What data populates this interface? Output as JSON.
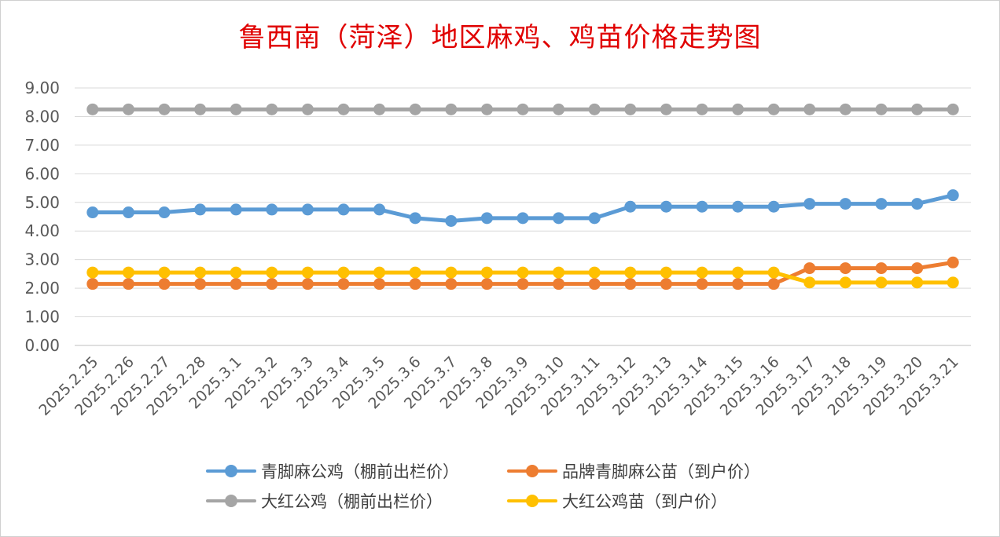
{
  "chart_data": {
    "type": "line",
    "title": "鲁西南（菏泽）地区麻鸡、鸡苗价格走势图",
    "xlabel": "",
    "ylabel": "",
    "ylim": [
      0,
      9
    ],
    "ytick_labels": [
      "0.00",
      "1.00",
      "2.00",
      "3.00",
      "4.00",
      "5.00",
      "6.00",
      "7.00",
      "8.00",
      "9.00"
    ],
    "grid": "horizontal",
    "legend_position": "bottom",
    "categories": [
      "2025.2.25",
      "2025.2.26",
      "2025.2.27",
      "2025.2.28",
      "2025.3.1",
      "2025.3.2",
      "2025.3.3",
      "2025.3.4",
      "2025.3.5",
      "2025.3.6",
      "2025.3.7",
      "2025.3.8",
      "2025.3.9",
      "2025.3.10",
      "2025.3.11",
      "2025.3.12",
      "2025.3.13",
      "2025.3.14",
      "2025.3.15",
      "2025.3.16",
      "2025.3.17",
      "2025.3.18",
      "2025.3.19",
      "2025.3.20",
      "2025.3.21"
    ],
    "series": [
      {
        "name": "青脚麻公鸡（棚前出栏价）",
        "color": "#5b9bd5",
        "values": [
          4.65,
          4.65,
          4.65,
          4.75,
          4.75,
          4.75,
          4.75,
          4.75,
          4.75,
          4.45,
          4.35,
          4.45,
          4.45,
          4.45,
          4.45,
          4.85,
          4.85,
          4.85,
          4.85,
          4.85,
          4.95,
          4.95,
          4.95,
          4.95,
          5.25
        ]
      },
      {
        "name": "品牌青脚麻公苗（到户价）",
        "color": "#ed7d31",
        "values": [
          2.15,
          2.15,
          2.15,
          2.15,
          2.15,
          2.15,
          2.15,
          2.15,
          2.15,
          2.15,
          2.15,
          2.15,
          2.15,
          2.15,
          2.15,
          2.15,
          2.15,
          2.15,
          2.15,
          2.15,
          2.7,
          2.7,
          2.7,
          2.7,
          2.9
        ]
      },
      {
        "name": "大红公鸡（棚前出栏价）",
        "color": "#a5a5a5",
        "values": [
          8.25,
          8.25,
          8.25,
          8.25,
          8.25,
          8.25,
          8.25,
          8.25,
          8.25,
          8.25,
          8.25,
          8.25,
          8.25,
          8.25,
          8.25,
          8.25,
          8.25,
          8.25,
          8.25,
          8.25,
          8.25,
          8.25,
          8.25,
          8.25,
          8.25
        ]
      },
      {
        "name": "大红公鸡苗（到户价）",
        "color": "#ffc000",
        "values": [
          2.55,
          2.55,
          2.55,
          2.55,
          2.55,
          2.55,
          2.55,
          2.55,
          2.55,
          2.55,
          2.55,
          2.55,
          2.55,
          2.55,
          2.55,
          2.55,
          2.55,
          2.55,
          2.55,
          2.55,
          2.2,
          2.2,
          2.2,
          2.2,
          2.2
        ]
      }
    ]
  }
}
